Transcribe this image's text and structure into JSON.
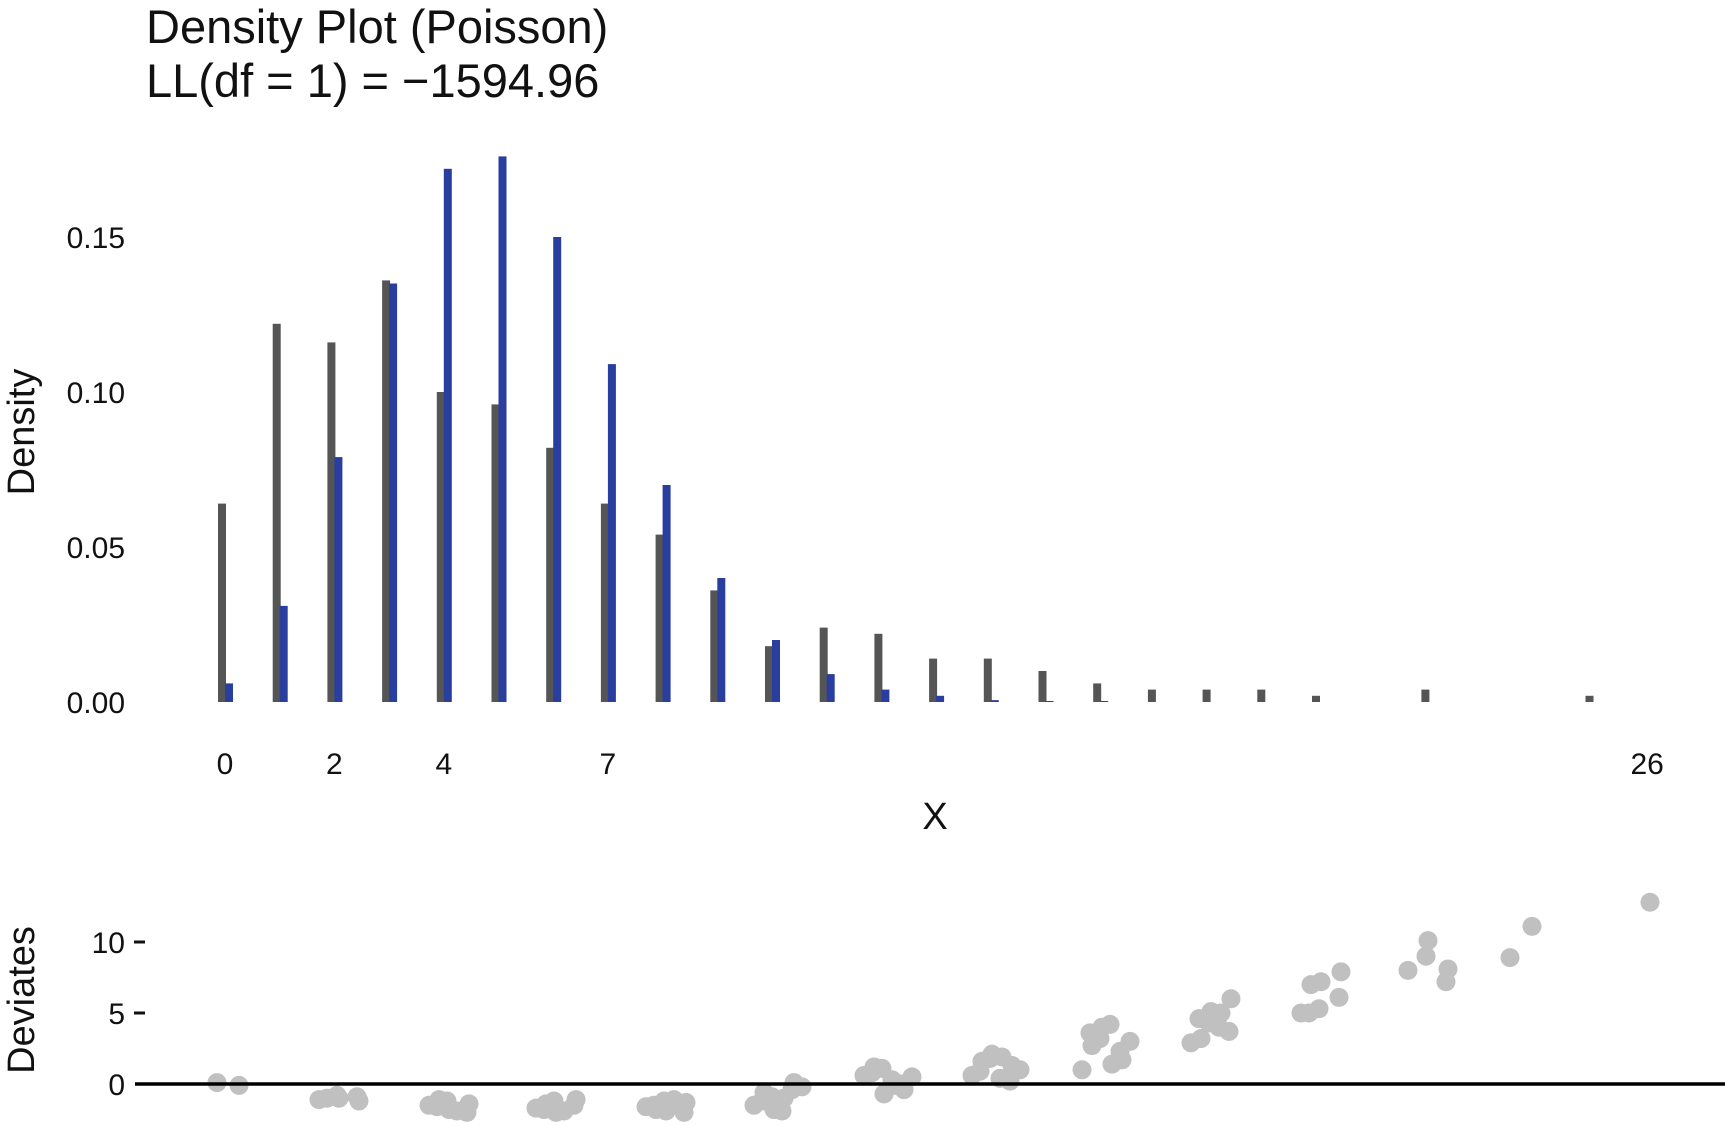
{
  "chart_data": [
    {
      "type": "bar",
      "title": "Density Plot (Poisson)",
      "subtitle": "LL(df = 1) = −1594.96",
      "xlabel": "X",
      "ylabel": "Density",
      "x_tick_labels": [
        "0",
        "2",
        "4",
        "7",
        "26"
      ],
      "y_tick_labels": [
        "0.00",
        "0.05",
        "0.10",
        "0.15"
      ],
      "ylim": [
        0,
        0.18
      ],
      "grid": false,
      "colors": {
        "observed": "#555555",
        "fitted": "#2a3ea0"
      },
      "x": [
        0,
        1,
        2,
        3,
        4,
        5,
        6,
        7,
        8,
        9,
        10,
        11,
        12,
        13,
        14,
        15,
        16,
        17,
        18,
        19,
        20,
        22,
        25
      ],
      "series": [
        {
          "values": [
            0.064,
            0.122,
            0.116,
            0.136,
            0.1,
            0.096,
            0.082,
            0.064,
            0.054,
            0.036,
            0.018,
            0.024,
            0.022,
            0.014,
            0.014,
            0.01,
            0.006,
            0.004,
            0.004,
            0.004,
            0.002,
            0.004,
            0.002
          ]
        },
        {
          "values": [
            0.006,
            0.031,
            0.079,
            0.135,
            0.172,
            0.176,
            0.15,
            0.109,
            0.07,
            0.04,
            0.02,
            0.009,
            0.004,
            0.002,
            0.0006,
            0.0002,
            0.0001,
            0,
            0,
            0,
            0,
            0,
            0
          ]
        }
      ]
    },
    {
      "type": "scatter",
      "xlabel": "",
      "ylabel": "Deviates",
      "y_tick_labels": [
        "0",
        "5",
        "10"
      ],
      "ylim": [
        -3,
        13
      ],
      "reference_line": 0,
      "color": "#c0c0c0",
      "groups": [
        {
          "x": 0,
          "y": [
            0.1,
            -0.1
          ]
        },
        {
          "x": 1,
          "y": [
            -1.1,
            -0.8,
            -1.0,
            -0.9,
            -1.2,
            -1.0
          ]
        },
        {
          "x": 2,
          "y": [
            -1.5,
            -1.2,
            -1.8,
            -2.0,
            -1.4,
            -1.6,
            -1.1,
            -1.9
          ]
        },
        {
          "x": 3,
          "y": [
            -1.7,
            -1.2,
            -2.0,
            -1.5,
            -1.1,
            -1.8,
            -1.4,
            -1.9
          ]
        },
        {
          "x": 4,
          "y": [
            -1.6,
            -1.2,
            -1.9,
            -2.0,
            -1.3,
            -1.5,
            -1.8,
            -1.1
          ]
        },
        {
          "x": 5,
          "y": [
            -1.5,
            -0.9,
            -1.8,
            -0.4,
            0.1,
            -1.2,
            -0.6,
            -1.9,
            -1.0,
            -0.2
          ]
        },
        {
          "x": 6,
          "y": [
            0.6,
            1.1,
            -0.7,
            0.0,
            -0.4,
            0.8,
            1.2,
            0.3,
            -0.1,
            0.5
          ]
        },
        {
          "x": 7,
          "y": [
            0.6,
            1.8,
            2.1,
            0.2,
            1.3,
            0.9,
            1.6,
            0.4,
            1.9,
            1.0
          ]
        },
        {
          "x": 8,
          "y": [
            1.0,
            3.2,
            4.0,
            2.3,
            1.7,
            3.6,
            2.7,
            4.2,
            1.4,
            3.0
          ]
        },
        {
          "x": 9,
          "y": [
            2.9,
            4.3,
            5.1,
            3.7,
            6.0,
            4.6,
            3.2,
            4.0,
            5.0
          ]
        },
        {
          "x": 10,
          "y": [
            5.0,
            5.3,
            7.2,
            6.1,
            7.9,
            5.0,
            7.0
          ]
        },
        {
          "x": 11,
          "y": [
            8.0,
            9.0,
            10.1,
            7.2,
            8.1
          ]
        },
        {
          "x": 12,
          "y": [
            8.9,
            11.1
          ]
        },
        {
          "x": 13,
          "y": [
            12.8
          ]
        }
      ]
    }
  ]
}
